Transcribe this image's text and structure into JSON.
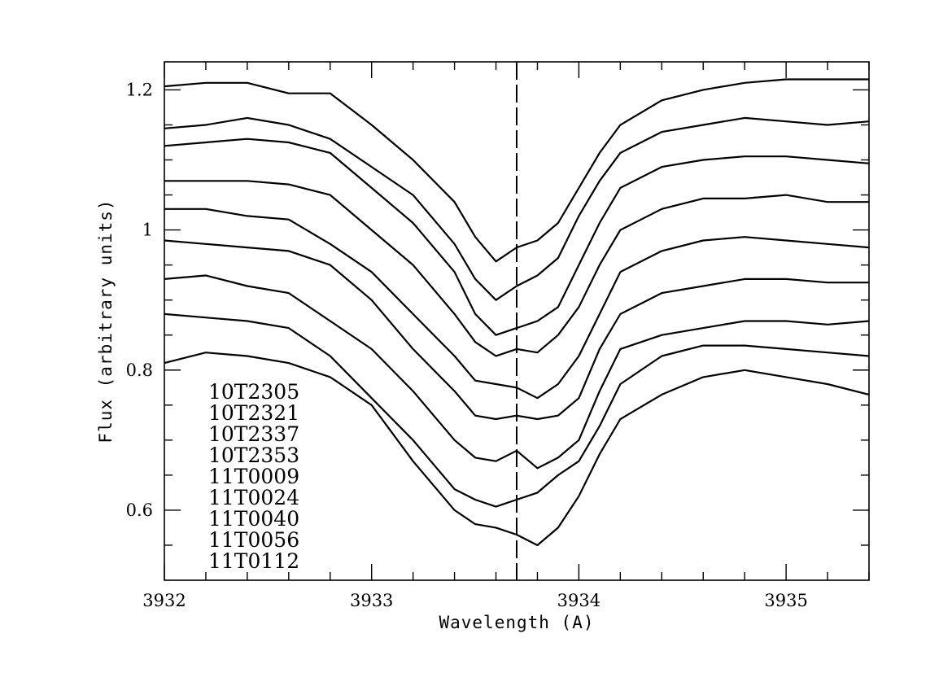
{
  "chart_data": {
    "type": "line",
    "title": "",
    "xlabel": "Wavelength (A)",
    "ylabel": "Flux (arbitrary units)",
    "xlim": [
      3932,
      3935.4
    ],
    "ylim": [
      0.5,
      1.24
    ],
    "x_ticks": [
      3932,
      3933,
      3934,
      3935
    ],
    "x_tick_labels": [
      "3932",
      "3933",
      "3934",
      "3935"
    ],
    "x_minor_step": 0.2,
    "y_ticks": [
      0.6,
      0.8,
      1.0,
      1.2
    ],
    "y_tick_labels": [
      "0.6",
      "0.8",
      "1",
      "1.2"
    ],
    "y_minor_step": 0.05,
    "grid": false,
    "reference_line": {
      "x": 3933.7,
      "style": "dashed"
    },
    "legend": {
      "placement": "bottom-left",
      "entries": [
        "10T2305",
        "10T2321",
        "10T2337",
        "10T2353",
        "11T0009",
        "11T0024",
        "11T0040",
        "11T0056",
        "11T0112"
      ]
    },
    "x": [
      3932.0,
      3932.2,
      3932.4,
      3932.6,
      3932.8,
      3933.0,
      3933.2,
      3933.4,
      3933.5,
      3933.6,
      3933.7,
      3933.8,
      3933.9,
      3934.0,
      3934.1,
      3934.2,
      3934.4,
      3934.6,
      3934.8,
      3935.0,
      3935.2,
      3935.4
    ],
    "series": [
      {
        "values": [
          1.205,
          1.21,
          1.21,
          1.195,
          1.195,
          1.15,
          1.1,
          1.04,
          0.99,
          0.955,
          0.975,
          0.985,
          1.01,
          1.06,
          1.11,
          1.15,
          1.185,
          1.2,
          1.21,
          1.215,
          1.215,
          1.215
        ]
      },
      {
        "values": [
          1.145,
          1.15,
          1.16,
          1.15,
          1.13,
          1.09,
          1.05,
          0.98,
          0.93,
          0.9,
          0.92,
          0.935,
          0.96,
          1.02,
          1.07,
          1.11,
          1.14,
          1.15,
          1.16,
          1.155,
          1.15,
          1.155
        ]
      },
      {
        "values": [
          1.12,
          1.125,
          1.13,
          1.125,
          1.11,
          1.06,
          1.01,
          0.94,
          0.88,
          0.85,
          0.86,
          0.87,
          0.89,
          0.95,
          1.01,
          1.06,
          1.09,
          1.1,
          1.105,
          1.105,
          1.1,
          1.095
        ]
      },
      {
        "values": [
          1.07,
          1.07,
          1.07,
          1.065,
          1.05,
          1.0,
          0.95,
          0.88,
          0.84,
          0.82,
          0.83,
          0.825,
          0.85,
          0.89,
          0.95,
          1.0,
          1.03,
          1.045,
          1.045,
          1.05,
          1.04,
          1.04
        ]
      },
      {
        "values": [
          1.03,
          1.03,
          1.02,
          1.015,
          0.98,
          0.94,
          0.88,
          0.82,
          0.785,
          0.78,
          0.775,
          0.76,
          0.78,
          0.82,
          0.88,
          0.94,
          0.97,
          0.985,
          0.99,
          0.985,
          0.98,
          0.975
        ]
      },
      {
        "values": [
          0.985,
          0.98,
          0.975,
          0.97,
          0.95,
          0.9,
          0.83,
          0.77,
          0.735,
          0.73,
          0.735,
          0.73,
          0.735,
          0.76,
          0.83,
          0.88,
          0.91,
          0.92,
          0.93,
          0.93,
          0.925,
          0.925
        ]
      },
      {
        "values": [
          0.93,
          0.935,
          0.92,
          0.91,
          0.87,
          0.83,
          0.77,
          0.7,
          0.675,
          0.67,
          0.685,
          0.66,
          0.675,
          0.7,
          0.77,
          0.83,
          0.85,
          0.86,
          0.87,
          0.87,
          0.865,
          0.87
        ]
      },
      {
        "values": [
          0.88,
          0.875,
          0.87,
          0.86,
          0.82,
          0.76,
          0.7,
          0.63,
          0.615,
          0.605,
          0.615,
          0.625,
          0.65,
          0.67,
          0.72,
          0.78,
          0.82,
          0.835,
          0.835,
          0.83,
          0.825,
          0.82
        ]
      },
      {
        "values": [
          0.81,
          0.825,
          0.82,
          0.81,
          0.79,
          0.75,
          0.67,
          0.6,
          0.58,
          0.575,
          0.565,
          0.55,
          0.575,
          0.62,
          0.68,
          0.73,
          0.765,
          0.79,
          0.8,
          0.79,
          0.78,
          0.765
        ]
      }
    ]
  }
}
